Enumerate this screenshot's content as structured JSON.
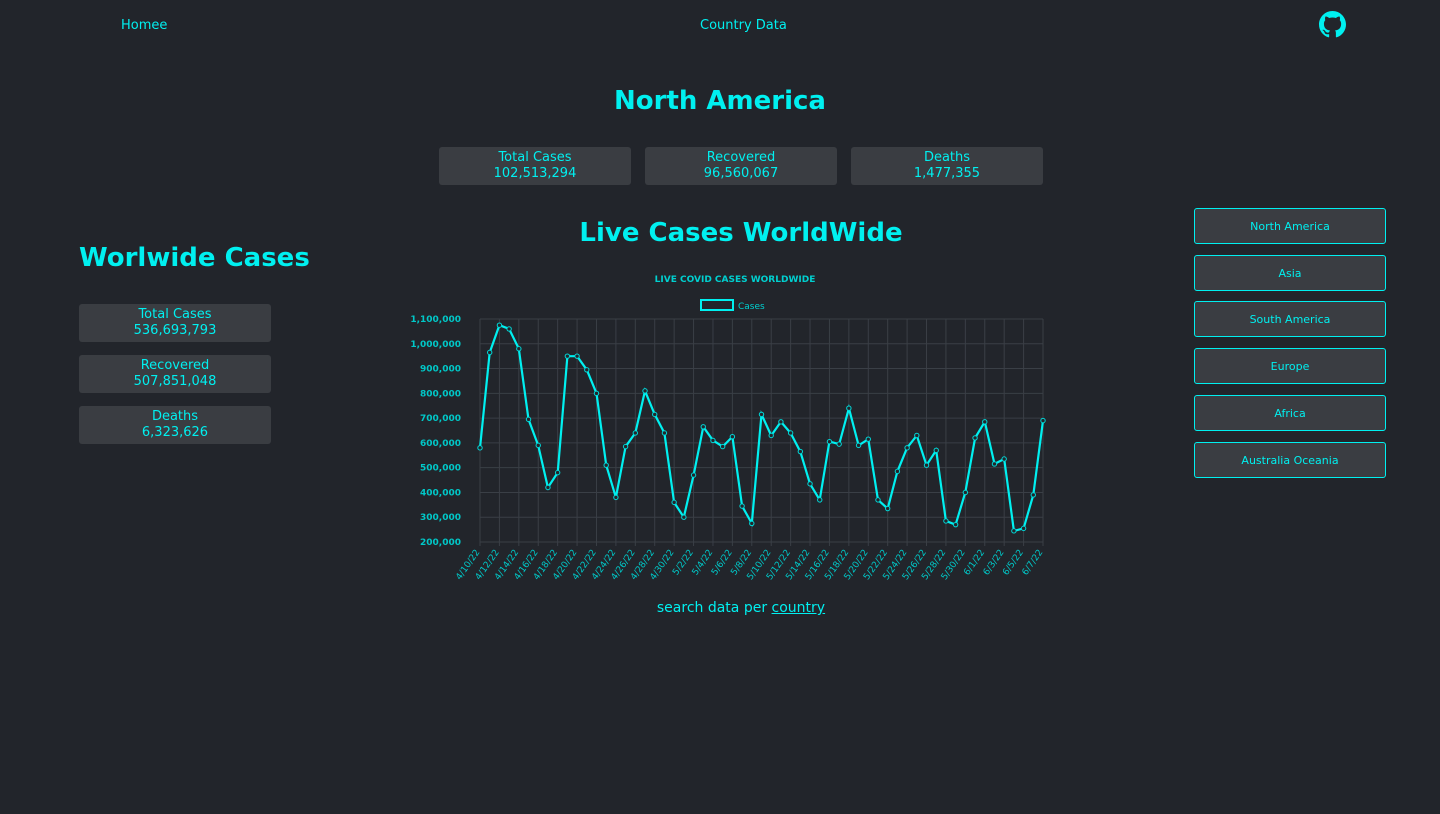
{
  "nav": {
    "home": "Homee",
    "country": "Country Data"
  },
  "region": {
    "title": "North America",
    "stats": [
      {
        "label": "Total Cases",
        "value": "102,513,294"
      },
      {
        "label": "Recovered",
        "value": "96,560,067"
      },
      {
        "label": "Deaths",
        "value": "1,477,355"
      }
    ]
  },
  "worldwide": {
    "title": "Worlwide Cases",
    "stats": [
      {
        "label": "Total Cases",
        "value": "536,693,793"
      },
      {
        "label": "Recovered",
        "value": "507,851,048"
      },
      {
        "label": "Deaths",
        "value": "6,323,626"
      }
    ]
  },
  "chart_heading": "Live Cases WorldWide",
  "search": {
    "prefix": "search data per ",
    "link": "country"
  },
  "region_buttons": [
    "North America",
    "Asia",
    "South America",
    "Europe",
    "Africa",
    "Australia Oceania"
  ],
  "colors": {
    "accent": "#00f0f0",
    "background": "#22252b",
    "card": "#3a3d42"
  },
  "icons": {
    "github": "github-icon"
  },
  "chart_data": {
    "type": "line",
    "title": "LIVE COVID CASES WORLDWIDE",
    "legend": "top",
    "grid": true,
    "series": [
      {
        "name": "Cases"
      }
    ],
    "x_tick_labels": [
      "4/10/22",
      "4/12/22",
      "4/14/22",
      "4/16/22",
      "4/18/22",
      "4/20/22",
      "4/22/22",
      "4/24/22",
      "4/26/22",
      "4/28/22",
      "4/30/22",
      "5/2/22",
      "5/4/22",
      "5/6/22",
      "5/8/22",
      "5/10/22",
      "5/12/22",
      "5/14/22",
      "5/16/22",
      "5/18/22",
      "5/20/22",
      "5/22/22",
      "5/24/22",
      "5/26/22",
      "5/28/22",
      "5/30/22",
      "6/1/22",
      "6/3/22",
      "6/5/22",
      "6/7/22"
    ],
    "y_tick_labels": [
      "1,100,000",
      "1,000,000",
      "900,000",
      "800,000",
      "700,000",
      "600,000",
      "500,000",
      "400,000",
      "300,000",
      "200,000"
    ],
    "ylim": [
      200000,
      1100000
    ],
    "x": [
      "4/10/22",
      "4/11/22",
      "4/12/22",
      "4/13/22",
      "4/14/22",
      "4/15/22",
      "4/16/22",
      "4/17/22",
      "4/18/22",
      "4/19/22",
      "4/20/22",
      "4/21/22",
      "4/22/22",
      "4/23/22",
      "4/24/22",
      "4/25/22",
      "4/26/22",
      "4/27/22",
      "4/28/22",
      "4/29/22",
      "4/30/22",
      "5/1/22",
      "5/2/22",
      "5/3/22",
      "5/4/22",
      "5/5/22",
      "5/6/22",
      "5/7/22",
      "5/8/22",
      "5/9/22",
      "5/10/22",
      "5/11/22",
      "5/12/22",
      "5/13/22",
      "5/14/22",
      "5/15/22",
      "5/16/22",
      "5/17/22",
      "5/18/22",
      "5/19/22",
      "5/20/22",
      "5/21/22",
      "5/22/22",
      "5/23/22",
      "5/24/22",
      "5/25/22",
      "5/26/22",
      "5/27/22",
      "5/28/22",
      "5/29/22",
      "5/30/22",
      "5/31/22",
      "6/1/22",
      "6/2/22",
      "6/3/22",
      "6/4/22",
      "6/5/22",
      "6/6/22",
      "6/7/22"
    ],
    "values": [
      580000,
      965000,
      1075000,
      1060000,
      980000,
      695000,
      590000,
      420000,
      480000,
      950000,
      950000,
      895000,
      800000,
      510000,
      380000,
      585000,
      640000,
      810000,
      715000,
      640000,
      360000,
      300000,
      470000,
      665000,
      610000,
      585000,
      625000,
      345000,
      275000,
      715000,
      630000,
      685000,
      640000,
      565000,
      435000,
      370000,
      605000,
      595000,
      740000,
      590000,
      615000,
      370000,
      335000,
      485000,
      580000,
      630000,
      510000,
      570000,
      285000,
      270000,
      400000,
      620000,
      685000,
      515000,
      535000,
      245000,
      255000,
      390000,
      690000
    ]
  }
}
